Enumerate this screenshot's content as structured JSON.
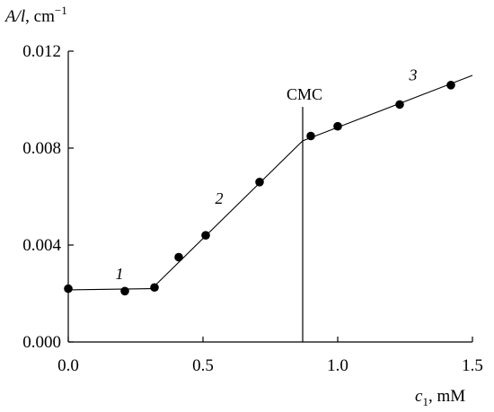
{
  "chart_data": {
    "type": "scatter",
    "title": "",
    "ylabel_main": "A/l",
    "ylabel_unit": ", cm",
    "ylabel_sup": "−1",
    "xlabel_main": "c",
    "xlabel_sub": "1",
    "xlabel_unit": ", mM",
    "xlim": [
      0,
      1.5
    ],
    "ylim": [
      0,
      0.012
    ],
    "x_ticks": [
      0,
      0.5,
      1.0,
      1.5
    ],
    "x_tick_labels": [
      "0.0",
      "0.5",
      "1.0",
      "1.5"
    ],
    "y_ticks": [
      0,
      0.004,
      0.008,
      0.012
    ],
    "y_tick_labels": [
      "0.000",
      "0.004",
      "0.008",
      "0.012"
    ],
    "grid": false,
    "points": [
      {
        "x": 0.0,
        "y": 0.0022
      },
      {
        "x": 0.21,
        "y": 0.0021
      },
      {
        "x": 0.32,
        "y": 0.00225
      },
      {
        "x": 0.41,
        "y": 0.0035
      },
      {
        "x": 0.51,
        "y": 0.0044
      },
      {
        "x": 0.71,
        "y": 0.0066
      },
      {
        "x": 0.9,
        "y": 0.0085
      },
      {
        "x": 1.0,
        "y": 0.0089
      },
      {
        "x": 1.23,
        "y": 0.0098
      },
      {
        "x": 1.42,
        "y": 0.0106
      }
    ],
    "fit_lines": [
      {
        "name": "1",
        "from": [
          0.0,
          0.00215
        ],
        "to": [
          0.31,
          0.0022
        ]
      },
      {
        "name": "2",
        "from": [
          0.31,
          0.0022
        ],
        "to": [
          0.87,
          0.0083
        ]
      },
      {
        "name": "3",
        "from": [
          0.87,
          0.0083
        ],
        "to": [
          1.5,
          0.011
        ]
      }
    ],
    "segment_labels": [
      {
        "text": "1",
        "x": 0.19,
        "y": 0.0026
      },
      {
        "text": "2",
        "x": 0.56,
        "y": 0.0057
      },
      {
        "text": "3",
        "x": 1.28,
        "y": 0.0108
      }
    ],
    "vline": {
      "x": 0.87,
      "ymax": 0.0097,
      "label": "CMC"
    }
  }
}
